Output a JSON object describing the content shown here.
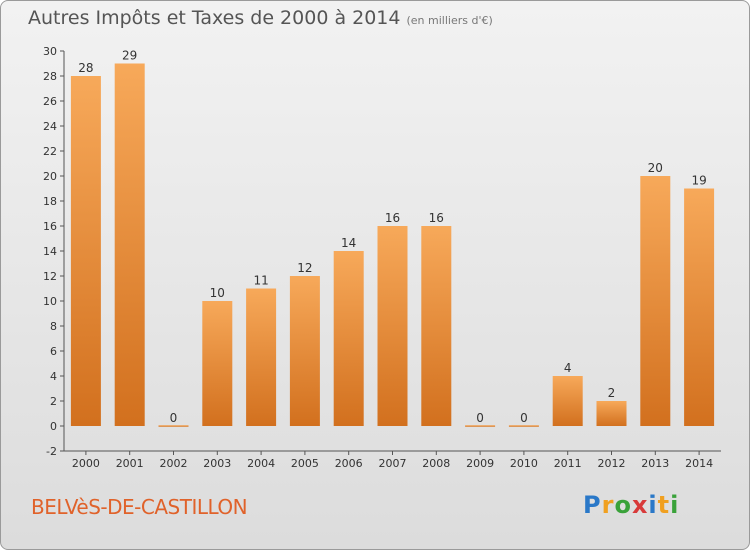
{
  "header": {
    "title": "Autres Impôts et Taxes de 2000 à 2014",
    "subtitle": "(en milliers d'€)"
  },
  "footer": {
    "commune": "BELVèS-DE-CASTILLON",
    "logo_letters": [
      "P",
      "r",
      "o",
      "x",
      "i",
      "t",
      "i"
    ]
  },
  "colors": {
    "bar_light": "#f7a95a",
    "bar_dark": "#d2701e",
    "axis": "#555555",
    "grid": "#d0d0d0"
  },
  "chart_data": {
    "type": "bar",
    "title": "Autres Impôts et Taxes de 2000 à 2014",
    "subtitle": "(en milliers d'€)",
    "categories": [
      "2000",
      "2001",
      "2002",
      "2003",
      "2004",
      "2005",
      "2006",
      "2007",
      "2008",
      "2009",
      "2010",
      "2011",
      "2012",
      "2013",
      "2014"
    ],
    "values": [
      28,
      29,
      0,
      10,
      11,
      12,
      14,
      16,
      16,
      0,
      0,
      4,
      2,
      20,
      19
    ],
    "data_labels": [
      "28",
      "29",
      "0",
      "10",
      "11",
      "12",
      "14",
      "16",
      "16",
      "0",
      "0",
      "4",
      "2",
      "20",
      "19"
    ],
    "ylim": [
      -2,
      30
    ],
    "yticks": [
      -2,
      0,
      2,
      4,
      6,
      8,
      10,
      12,
      14,
      16,
      18,
      20,
      22,
      24,
      26,
      28,
      30
    ],
    "xlabel": "",
    "ylabel": "",
    "grid": false,
    "legend": "none"
  }
}
